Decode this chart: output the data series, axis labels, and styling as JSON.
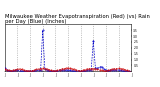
{
  "title": "Milwaukee Weather Evapotranspiration (Red) (vs) Rain per Day (Blue) (Inches)",
  "et_values": [
    0.2,
    0.14,
    0.08,
    0.06,
    0.1,
    0.14,
    0.18,
    0.2,
    0.16,
    0.1,
    0.06,
    0.05,
    0.04,
    0.06,
    0.1,
    0.16,
    0.2,
    0.24,
    0.26,
    0.24,
    0.2,
    0.14,
    0.08,
    0.05,
    0.05,
    0.08,
    0.14,
    0.2,
    0.24,
    0.26,
    0.28,
    0.26,
    0.22,
    0.16,
    0.1,
    0.06,
    0.05,
    0.08,
    0.14,
    0.2,
    0.22,
    0.24,
    0.24,
    0.22,
    0.18,
    0.12,
    0.08,
    0.05,
    0.05,
    0.08,
    0.14,
    0.2,
    0.22,
    0.24,
    0.26,
    0.24,
    0.2,
    0.14,
    0.08,
    0.05
  ],
  "rain_values": [
    0.3,
    0.08,
    0.04,
    0.03,
    0.05,
    0.08,
    0.1,
    0.06,
    0.04,
    0.03,
    0.02,
    0.02,
    0.02,
    0.03,
    0.06,
    0.08,
    0.1,
    0.08,
    3.5,
    0.2,
    0.1,
    0.06,
    0.04,
    0.03,
    0.03,
    0.05,
    0.08,
    0.1,
    0.12,
    0.1,
    0.12,
    0.08,
    0.06,
    0.04,
    0.03,
    0.02,
    0.02,
    0.04,
    0.07,
    0.09,
    0.11,
    0.09,
    2.6,
    0.3,
    0.25,
    0.35,
    0.4,
    0.2,
    0.1,
    0.06,
    0.08,
    0.1,
    0.12,
    0.1,
    0.12,
    0.08,
    0.06,
    0.04,
    0.03,
    0.02
  ],
  "n_points": 60,
  "x_tick_positions": [
    0,
    6,
    12,
    18,
    24,
    30,
    36,
    42,
    48,
    54,
    60
  ],
  "x_tick_labels": [
    "J",
    "J",
    "J",
    "J",
    "J",
    "J",
    "J",
    "J",
    "J",
    "J",
    "J"
  ],
  "vline_positions": [
    6,
    12,
    18,
    24,
    30,
    36,
    42,
    48,
    54
  ],
  "ylim": [
    0,
    4.0
  ],
  "y_ticks": [
    0.5,
    1.0,
    1.5,
    2.0,
    2.5,
    3.0,
    3.5
  ],
  "et_color": "#cc0000",
  "rain_color": "#0000cc",
  "vline_color": "#999999",
  "bg_color": "#ffffff",
  "title_fontsize": 3.8,
  "tick_fontsize": 2.2
}
